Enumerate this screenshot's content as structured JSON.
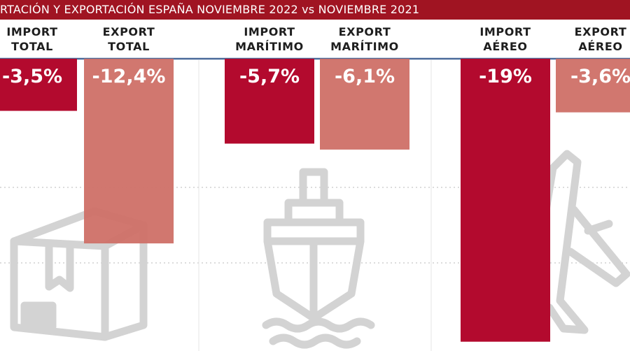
{
  "banner": {
    "title": "RTACIÓN Y EXPORTACIÓN ESPAÑA NOVIEMBRE 2022 vs NOVIEMBRE 2021"
  },
  "colors": {
    "banner": "#a01422",
    "import_bar": "#b30a2e",
    "export_bar": "#cf7067",
    "axis_line": "#4a6a9a",
    "grid": "#b8b8b8",
    "icon": "#d3d3d3"
  },
  "chart_data": {
    "type": "bar",
    "categories": [
      "IMPORT\nTOTAL",
      "EXPORT\nTOTAL",
      "IMPORT\nMARÍTIMO",
      "EXPORT\nMARÍTIMO",
      "IMPORT\nAÉREO",
      "EXPORT\nAÉREO"
    ],
    "values": [
      -3.5,
      -12.4,
      -5.7,
      -6.1,
      -19,
      -3.6
    ],
    "value_labels": [
      "-3,5%",
      "-12,4%",
      "-5,7%",
      "-6,1%",
      "-19%",
      "-3,6%"
    ],
    "groups": [
      "total",
      "total",
      "maritime",
      "maritime",
      "air",
      "air"
    ],
    "series_kind": [
      "import",
      "export",
      "import",
      "export",
      "import",
      "export"
    ],
    "ylim": [
      -19,
      0
    ],
    "grid": true,
    "icons": [
      "box-icon",
      "ship-icon",
      "airplane-icon"
    ]
  }
}
